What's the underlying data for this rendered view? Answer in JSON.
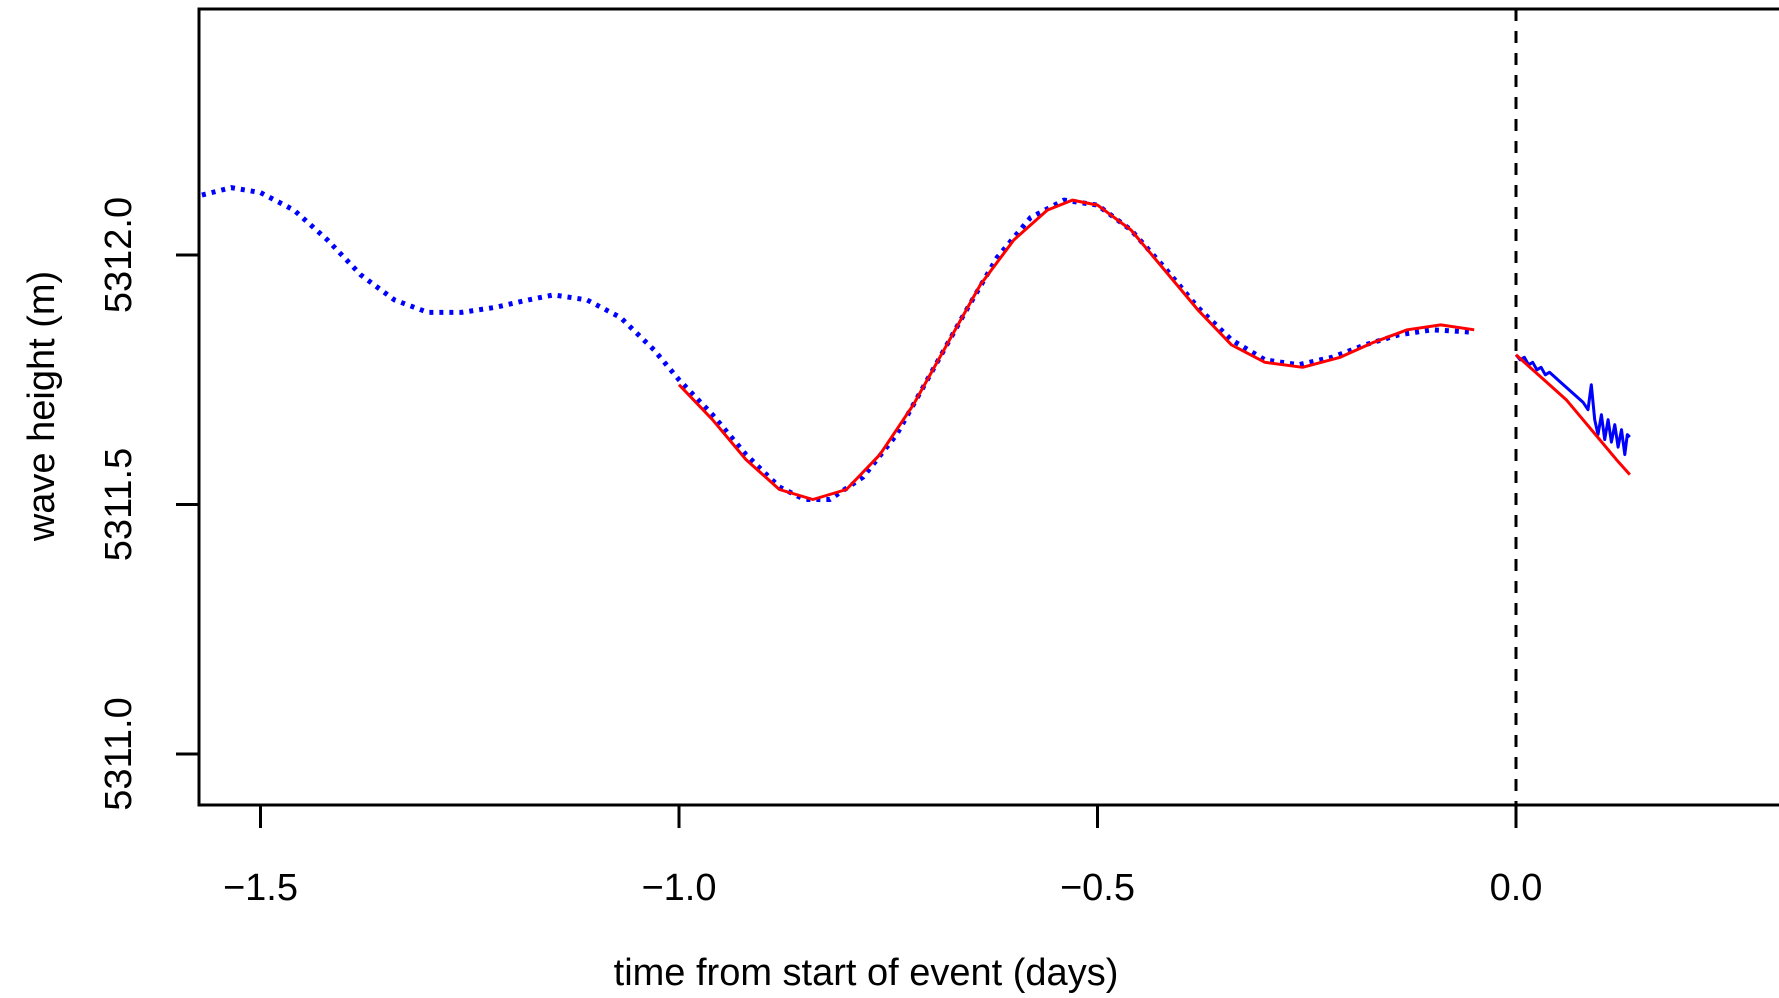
{
  "chart_data": {
    "type": "line",
    "title": "",
    "xlabel": "time from start of event  (days)",
    "ylabel": "wave height  (m)",
    "xlim": [
      -1.57,
      0.37
    ],
    "ylim": [
      5310.9,
      5312.5
    ],
    "x_ticks": [
      -1.5,
      -1.0,
      -0.5,
      0.0
    ],
    "x_tick_labels": [
      "−1.5",
      "−1.0",
      "−0.5",
      "0.0"
    ],
    "y_ticks": [
      5311.0,
      5311.5,
      5312.0
    ],
    "y_tick_labels": [
      "5311.0",
      "5311.5",
      "5312.0"
    ],
    "grid": false,
    "legend": "none",
    "vline": {
      "x": 0.0,
      "style": "dashed",
      "color": "#000000"
    },
    "series": [
      {
        "style": "dotted",
        "color": "#0000ff",
        "points": [
          [
            -1.57,
            5312.12
          ],
          [
            -1.535,
            5312.135
          ],
          [
            -1.5,
            5312.125
          ],
          [
            -1.46,
            5312.09
          ],
          [
            -1.42,
            5312.03
          ],
          [
            -1.38,
            5311.96
          ],
          [
            -1.34,
            5311.91
          ],
          [
            -1.3,
            5311.885
          ],
          [
            -1.26,
            5311.885
          ],
          [
            -1.22,
            5311.895
          ],
          [
            -1.18,
            5311.91
          ],
          [
            -1.15,
            5311.92
          ],
          [
            -1.11,
            5311.91
          ],
          [
            -1.07,
            5311.875
          ],
          [
            -1.03,
            5311.81
          ],
          [
            -1.0,
            5311.75
          ],
          [
            -0.96,
            5311.68
          ],
          [
            -0.92,
            5311.6
          ],
          [
            -0.88,
            5311.535
          ],
          [
            -0.85,
            5311.51
          ],
          [
            -0.82,
            5311.51
          ],
          [
            -0.78,
            5311.555
          ],
          [
            -0.74,
            5311.64
          ],
          [
            -0.7,
            5311.76
          ],
          [
            -0.66,
            5311.88
          ],
          [
            -0.62,
            5311.995
          ],
          [
            -0.58,
            5312.075
          ],
          [
            -0.54,
            5312.11
          ],
          [
            -0.5,
            5312.1
          ],
          [
            -0.46,
            5312.05
          ],
          [
            -0.42,
            5311.975
          ],
          [
            -0.38,
            5311.895
          ],
          [
            -0.34,
            5311.83
          ],
          [
            -0.3,
            5311.79
          ],
          [
            -0.26,
            5311.78
          ],
          [
            -0.22,
            5311.795
          ],
          [
            -0.18,
            5311.82
          ],
          [
            -0.14,
            5311.84
          ],
          [
            -0.1,
            5311.85
          ],
          [
            -0.05,
            5311.845
          ]
        ]
      },
      {
        "style": "solid",
        "color": "#ff0000",
        "points": [
          [
            -1.0,
            5311.74
          ],
          [
            -0.96,
            5311.67
          ],
          [
            -0.92,
            5311.59
          ],
          [
            -0.88,
            5311.53
          ],
          [
            -0.84,
            5311.51
          ],
          [
            -0.8,
            5311.53
          ],
          [
            -0.76,
            5311.6
          ],
          [
            -0.72,
            5311.7
          ],
          [
            -0.68,
            5311.82
          ],
          [
            -0.64,
            5311.94
          ],
          [
            -0.6,
            5312.03
          ],
          [
            -0.56,
            5312.09
          ],
          [
            -0.53,
            5312.11
          ],
          [
            -0.5,
            5312.1
          ],
          [
            -0.46,
            5312.05
          ],
          [
            -0.42,
            5311.97
          ],
          [
            -0.38,
            5311.89
          ],
          [
            -0.34,
            5311.82
          ],
          [
            -0.3,
            5311.785
          ],
          [
            -0.255,
            5311.775
          ],
          [
            -0.21,
            5311.795
          ],
          [
            -0.17,
            5311.825
          ],
          [
            -0.13,
            5311.85
          ],
          [
            -0.09,
            5311.86
          ],
          [
            -0.05,
            5311.85
          ]
        ]
      },
      {
        "style": "solid",
        "color": "#0000ff",
        "points": [
          [
            0.0,
            5311.8
          ],
          [
            0.005,
            5311.79
          ],
          [
            0.01,
            5311.795
          ],
          [
            0.015,
            5311.78
          ],
          [
            0.02,
            5311.785
          ],
          [
            0.025,
            5311.77
          ],
          [
            0.03,
            5311.775
          ],
          [
            0.035,
            5311.76
          ],
          [
            0.04,
            5311.765
          ],
          [
            0.05,
            5311.75
          ],
          [
            0.06,
            5311.735
          ],
          [
            0.07,
            5311.72
          ],
          [
            0.08,
            5311.705
          ],
          [
            0.086,
            5311.69
          ],
          [
            0.09,
            5311.74
          ],
          [
            0.094,
            5311.67
          ],
          [
            0.098,
            5311.64
          ],
          [
            0.102,
            5311.68
          ],
          [
            0.106,
            5311.63
          ],
          [
            0.11,
            5311.67
          ],
          [
            0.114,
            5311.625
          ],
          [
            0.118,
            5311.66
          ],
          [
            0.122,
            5311.615
          ],
          [
            0.126,
            5311.65
          ],
          [
            0.13,
            5311.6
          ],
          [
            0.133,
            5311.64
          ],
          [
            0.136,
            5311.635
          ]
        ]
      },
      {
        "style": "solid",
        "color": "#ff0000",
        "points": [
          [
            0.0,
            5311.8
          ],
          [
            0.02,
            5311.77
          ],
          [
            0.04,
            5311.74
          ],
          [
            0.06,
            5311.71
          ],
          [
            0.08,
            5311.67
          ],
          [
            0.1,
            5311.63
          ],
          [
            0.12,
            5311.59
          ],
          [
            0.136,
            5311.56
          ]
        ]
      }
    ]
  }
}
